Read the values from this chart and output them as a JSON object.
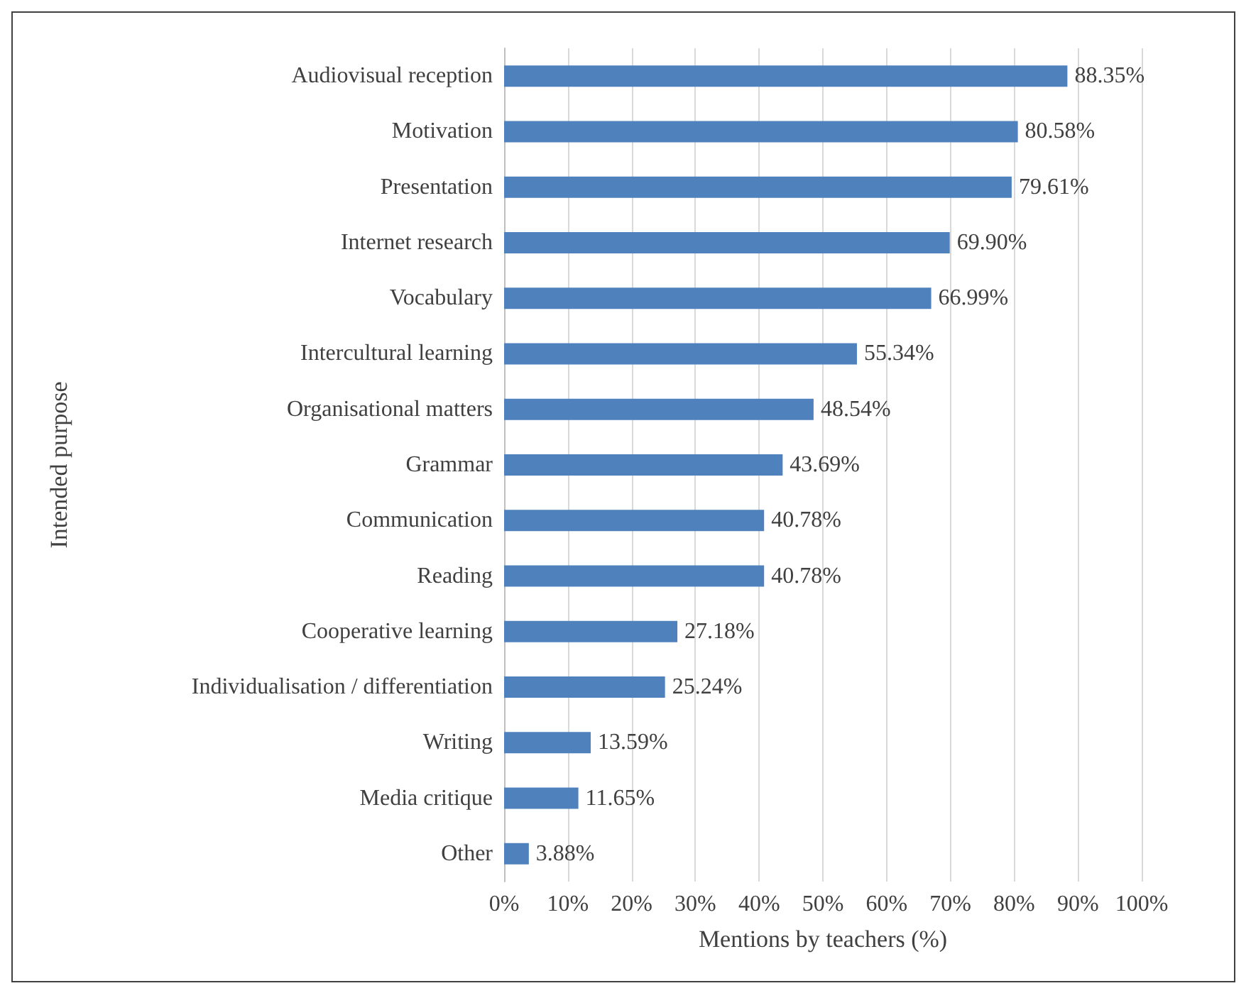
{
  "chart_data": {
    "type": "bar",
    "orientation": "horizontal",
    "xlabel": "Mentions by teachers (%)",
    "ylabel": "Intended purpose",
    "categories": [
      "Audiovisual reception",
      "Motivation",
      "Presentation",
      "Internet research",
      "Vocabulary",
      "Intercultural learning",
      "Organisational matters",
      "Grammar",
      "Communication",
      "Reading",
      "Cooperative learning",
      "Individualisation / differentiation",
      "Writing",
      "Media critique",
      "Other"
    ],
    "values": [
      88.35,
      80.58,
      79.61,
      69.9,
      66.99,
      55.34,
      48.54,
      43.69,
      40.78,
      40.78,
      27.18,
      25.24,
      13.59,
      11.65,
      3.88
    ],
    "value_labels": [
      "88.35%",
      "80.58%",
      "79.61%",
      "69.90%",
      "66.99%",
      "55.34%",
      "48.54%",
      "43.69%",
      "40.78%",
      "40.78%",
      "27.18%",
      "25.24%",
      "13.59%",
      "11.65%",
      "3.88%"
    ],
    "color": "#4f81bd",
    "xlim": [
      0,
      100
    ],
    "xticks": [
      {
        "value": 0,
        "label": "0%"
      },
      {
        "value": 10,
        "label": "10%"
      },
      {
        "value": 20,
        "label": "20%"
      },
      {
        "value": 30,
        "label": "30%"
      },
      {
        "value": 40,
        "label": "40%"
      },
      {
        "value": 50,
        "label": "50%"
      },
      {
        "value": 60,
        "label": "60%"
      },
      {
        "value": 70,
        "label": "70%"
      },
      {
        "value": 80,
        "label": "80%"
      },
      {
        "value": 90,
        "label": "90%"
      },
      {
        "value": 100,
        "label": "100%"
      }
    ],
    "grid": "x"
  }
}
